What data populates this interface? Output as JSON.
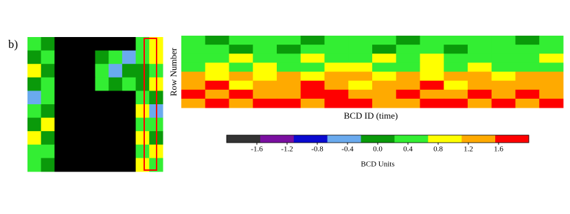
{
  "chart_data": [
    {
      "type": "heatmap",
      "panel_label": "b)",
      "z": [
        [
          0.4,
          0.1,
          null,
          null,
          null,
          null,
          null,
          null,
          0.3,
          0.7
        ],
        [
          0.2,
          0.6,
          null,
          null,
          null,
          0.0,
          0.4,
          -0.3,
          0.5,
          0.9
        ],
        [
          0.7,
          -0.2,
          null,
          null,
          null,
          0.3,
          -0.5,
          0.2,
          0.1,
          0.4
        ],
        [
          0.1,
          0.5,
          null,
          null,
          null,
          0.6,
          0.2,
          0.4,
          -0.2,
          0.8
        ],
        [
          -0.3,
          0.3,
          null,
          null,
          null,
          null,
          null,
          null,
          0.6,
          0.2
        ],
        [
          0.5,
          0.0,
          null,
          null,
          null,
          null,
          null,
          null,
          0.9,
          -0.4
        ],
        [
          0.2,
          0.7,
          null,
          null,
          null,
          null,
          null,
          null,
          0.3,
          0.6
        ],
        [
          0.8,
          0.1,
          null,
          null,
          null,
          null,
          null,
          null,
          1.0,
          0.2
        ],
        [
          0.3,
          0.6,
          null,
          null,
          null,
          null,
          null,
          null,
          0.5,
          0.9
        ],
        [
          0.6,
          0.2,
          null,
          null,
          null,
          null,
          null,
          null,
          0.8,
          0.4
        ]
      ]
    },
    {
      "type": "heatmap",
      "xlabel": "BCD ID (time)",
      "ylabel": "Row Number",
      "z": [
        [
          0.4,
          0.2,
          0.5,
          0.3,
          0.6,
          0.1,
          0.4,
          0.3,
          0.5,
          0.2,
          0.4,
          0.6,
          0.3,
          0.5,
          0.2,
          0.4
        ],
        [
          0.3,
          0.5,
          0.1,
          0.4,
          0.2,
          0.6,
          0.3,
          0.5,
          0.1,
          0.4,
          0.3,
          0.2,
          0.5,
          0.4,
          0.6,
          0.3
        ],
        [
          0.6,
          0.4,
          0.7,
          0.5,
          0.3,
          0.8,
          0.6,
          0.4,
          0.9,
          0.5,
          0.7,
          0.4,
          0.6,
          0.3,
          0.5,
          0.7
        ],
        [
          0.5,
          0.7,
          0.4,
          0.8,
          0.6,
          0.5,
          0.9,
          0.7,
          0.4,
          0.6,
          0.8,
          0.5,
          0.7,
          0.6,
          0.4,
          0.5
        ],
        [
          1.2,
          1.0,
          1.3,
          1.1,
          1.4,
          1.0,
          1.2,
          1.5,
          1.1,
          1.3,
          1.0,
          1.2,
          1.4,
          1.1,
          1.3,
          1.2
        ],
        [
          1.3,
          1.6,
          1.1,
          1.4,
          1.2,
          1.7,
          1.3,
          1.0,
          1.5,
          1.2,
          1.6,
          1.1,
          1.4,
          1.3,
          1.5,
          1.2
        ],
        [
          1.6,
          1.3,
          1.8,
          1.5,
          1.2,
          1.6,
          1.9,
          1.4,
          1.3,
          1.7,
          1.2,
          1.5,
          1.8,
          1.4,
          1.6,
          1.3
        ],
        [
          1.5,
          1.8,
          1.4,
          1.7,
          1.9,
          1.3,
          1.6,
          1.8,
          1.5,
          1.4,
          1.9,
          1.6,
          1.3,
          1.7,
          1.5,
          1.8
        ]
      ],
      "colorbar": {
        "label": "BCD Units",
        "clim": [
          -2,
          2
        ],
        "colors": [
          "#333333",
          "#7a0fa0",
          "#0a0ad0",
          "#6aaaee",
          "#0a9a0a",
          "#33ee33",
          "#ffff00",
          "#ffaa00",
          "#ff0000"
        ],
        "ticks": [
          -1.6,
          -1.2,
          -0.8,
          -0.4,
          {
            "value": 0,
            "label": "0.0"
          },
          0.4,
          0.8,
          1.2,
          1.6
        ]
      }
    }
  ]
}
